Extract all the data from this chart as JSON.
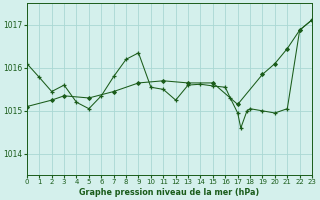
{
  "title": "Graphe pression niveau de la mer (hPa)",
  "bg_color": "#d4f0ec",
  "grid_color": "#aad8d3",
  "line_color": "#1a5c1a",
  "xlim": [
    0,
    23
  ],
  "ylim": [
    1013.5,
    1017.5
  ],
  "yticks": [
    1014,
    1015,
    1016,
    1017
  ],
  "xticks": [
    0,
    1,
    2,
    3,
    4,
    5,
    6,
    7,
    8,
    9,
    10,
    11,
    12,
    13,
    14,
    15,
    16,
    17,
    18,
    19,
    20,
    21,
    22,
    23
  ],
  "jagged_x": [
    0,
    1,
    2,
    3,
    4,
    5,
    6,
    7,
    8,
    9,
    10,
    11,
    12,
    13,
    14,
    15,
    16,
    16.4,
    17,
    17.25,
    17.75,
    18,
    19,
    20,
    21,
    22,
    23
  ],
  "jagged_y": [
    1016.1,
    1015.78,
    1015.45,
    1015.6,
    1015.2,
    1015.05,
    1015.35,
    1015.8,
    1016.2,
    1016.35,
    1015.55,
    1015.5,
    1015.25,
    1015.6,
    1015.62,
    1015.58,
    1015.55,
    1015.3,
    1014.95,
    1014.6,
    1015.0,
    1015.05,
    1015.0,
    1014.95,
    1015.05,
    1016.88,
    1017.12
  ],
  "smooth_x": [
    0,
    2,
    3,
    5,
    7,
    9,
    11,
    13,
    15,
    17,
    19,
    20,
    21,
    22,
    23
  ],
  "smooth_y": [
    1015.1,
    1015.25,
    1015.35,
    1015.3,
    1015.45,
    1015.65,
    1015.7,
    1015.65,
    1015.65,
    1015.15,
    1015.85,
    1016.1,
    1016.45,
    1016.88,
    1017.12
  ]
}
